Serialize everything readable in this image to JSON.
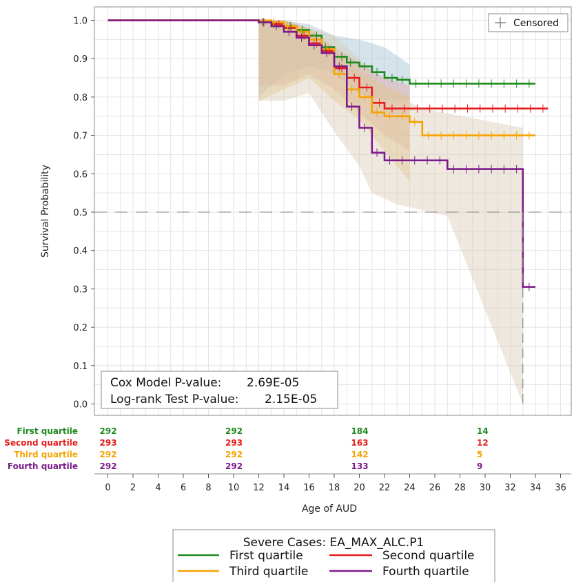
{
  "chart_data": {
    "type": "line",
    "subtype": "kaplan-meier",
    "xlabel": "Age of AUD",
    "ylabel": "Survival Probability",
    "xlim": [
      0,
      36
    ],
    "ylim": [
      0,
      1.0
    ],
    "x_ticks": [
      0,
      2,
      4,
      6,
      8,
      10,
      12,
      14,
      16,
      18,
      20,
      22,
      24,
      26,
      28,
      30,
      32,
      34,
      36
    ],
    "x_tick_labels": [
      "0",
      "2",
      "4",
      "6",
      "8",
      "10",
      "12",
      "14",
      "16",
      "18",
      "20",
      "22",
      "24",
      "26",
      "28",
      "30",
      "32",
      "34",
      "36"
    ],
    "y_ticks": [
      0,
      0.1,
      0.2,
      0.3,
      0.4,
      0.5,
      0.6,
      0.7,
      0.8,
      0.9,
      1.0
    ],
    "y_tick_labels": [
      "0.0",
      "0.1",
      "0.2",
      "0.3",
      "0.4",
      "0.5",
      "0.6",
      "0.7",
      "0.8",
      "0.9",
      "1.0"
    ],
    "grid": true,
    "reference_line_y": 0.5,
    "censor_legend": "Censored",
    "stats": {
      "cox_label": "Cox Model P-value:",
      "cox_value": "2.69E-05",
      "logrank_label": "Log-rank Test P-value:",
      "logrank_value": "2.15E-05"
    },
    "legend_title": "Severe Cases: EA_MAX_ALC.P1",
    "series": [
      {
        "name": "First quartile",
        "color": "#1e8a1e",
        "steps": [
          [
            0,
            1.0
          ],
          [
            12,
            0.995
          ],
          [
            13,
            0.99
          ],
          [
            14,
            0.985
          ],
          [
            15,
            0.975
          ],
          [
            16,
            0.96
          ],
          [
            17,
            0.93
          ],
          [
            18,
            0.905
          ],
          [
            19,
            0.89
          ],
          [
            20,
            0.88
          ],
          [
            21,
            0.865
          ],
          [
            22,
            0.85
          ],
          [
            23,
            0.845
          ],
          [
            24,
            0.835
          ],
          [
            34,
            0.835
          ]
        ],
        "end_x": 34,
        "censor_x": [
          12.3,
          13.2,
          14.5,
          15.5,
          16.6,
          17.3,
          18.6,
          19.3,
          20.4,
          21.4,
          22.6,
          23.4,
          24.5,
          25.5,
          26.5,
          27.5,
          28.5,
          29.5,
          30.5,
          31.5,
          32.5,
          33.5
        ],
        "ci_upper": [
          [
            12,
            1.0
          ],
          [
            14,
            1.0
          ],
          [
            16,
            0.99
          ],
          [
            18,
            0.96
          ],
          [
            20,
            0.95
          ],
          [
            22,
            0.93
          ],
          [
            24,
            0.885
          ]
        ],
        "ci_lower": [
          [
            12,
            0.8
          ],
          [
            14,
            0.86
          ],
          [
            16,
            0.88
          ],
          [
            18,
            0.86
          ],
          [
            20,
            0.81
          ],
          [
            22,
            0.79
          ],
          [
            24,
            0.79
          ]
        ],
        "ci_color": "#9cbfd0",
        "at_risk": [
          292,
          292,
          184,
          14
        ]
      },
      {
        "name": "Second quartile",
        "color": "#e61c1c",
        "steps": [
          [
            0,
            1.0
          ],
          [
            12,
            0.995
          ],
          [
            13,
            0.99
          ],
          [
            14,
            0.98
          ],
          [
            15,
            0.96
          ],
          [
            16,
            0.94
          ],
          [
            17,
            0.92
          ],
          [
            18,
            0.875
          ],
          [
            19,
            0.85
          ],
          [
            20,
            0.825
          ],
          [
            21,
            0.785
          ],
          [
            22,
            0.77
          ],
          [
            35,
            0.77
          ]
        ],
        "end_x": 35,
        "censor_x": [
          12.4,
          13.6,
          14.6,
          15.6,
          16.6,
          17.6,
          18.6,
          19.6,
          20.6,
          21.6,
          22.6,
          23.6,
          24.6,
          25.6,
          26.6,
          27.6,
          28.6,
          29.6,
          30.6,
          31.6,
          32.6,
          33.6,
          34.6
        ],
        "ci_upper": [
          [
            12,
            1.0
          ],
          [
            14,
            1.0
          ],
          [
            16,
            0.98
          ],
          [
            18,
            0.93
          ],
          [
            20,
            0.89
          ],
          [
            22,
            0.85
          ],
          [
            24,
            0.83
          ]
        ],
        "ci_lower": [
          [
            12,
            0.83
          ],
          [
            14,
            0.83
          ],
          [
            16,
            0.86
          ],
          [
            18,
            0.82
          ],
          [
            20,
            0.76
          ],
          [
            22,
            0.7
          ],
          [
            24,
            0.66
          ]
        ],
        "ci_color": "#e0a0a0",
        "at_risk": [
          293,
          293,
          163,
          12
        ]
      },
      {
        "name": "Third quartile",
        "color": "#f5a300",
        "steps": [
          [
            0,
            1.0
          ],
          [
            12,
            1.0
          ],
          [
            13,
            0.995
          ],
          [
            14,
            0.985
          ],
          [
            15,
            0.97
          ],
          [
            16,
            0.95
          ],
          [
            17,
            0.925
          ],
          [
            18,
            0.86
          ],
          [
            19,
            0.82
          ],
          [
            20,
            0.8
          ],
          [
            21,
            0.76
          ],
          [
            22,
            0.75
          ],
          [
            24,
            0.735
          ],
          [
            25,
            0.7
          ],
          [
            34,
            0.7
          ]
        ],
        "end_x": 34,
        "censor_x": [
          13.2,
          14.3,
          15.4,
          16.4,
          17.4,
          18.4,
          19.4,
          20.4,
          21.4,
          22.4,
          23.4,
          24.4,
          25.5,
          26.5,
          27.5,
          28.5,
          29.5,
          30.5,
          31.5,
          32.5,
          33.5
        ],
        "ci_upper": [
          [
            12,
            1.0
          ],
          [
            14,
            1.0
          ],
          [
            16,
            0.98
          ],
          [
            18,
            0.92
          ],
          [
            20,
            0.87
          ],
          [
            22,
            0.83
          ],
          [
            24,
            0.8
          ]
        ],
        "ci_lower": [
          [
            12,
            0.79
          ],
          [
            14,
            0.82
          ],
          [
            16,
            0.85
          ],
          [
            18,
            0.79
          ],
          [
            20,
            0.74
          ],
          [
            22,
            0.66
          ],
          [
            24,
            0.58
          ]
        ],
        "ci_color": "#e6c47a",
        "at_risk": [
          292,
          292,
          142,
          5
        ]
      },
      {
        "name": "Fourth quartile",
        "color": "#7a1a8a",
        "steps": [
          [
            0,
            1.0
          ],
          [
            12,
            0.995
          ],
          [
            13,
            0.985
          ],
          [
            14,
            0.97
          ],
          [
            15,
            0.955
          ],
          [
            16,
            0.935
          ],
          [
            17,
            0.915
          ],
          [
            18,
            0.88
          ],
          [
            19,
            0.775
          ],
          [
            20,
            0.72
          ],
          [
            21,
            0.655
          ],
          [
            22,
            0.635
          ],
          [
            27,
            0.612
          ],
          [
            33,
            0.305
          ],
          [
            34,
            0.305
          ]
        ],
        "end_x": 34,
        "censor_x": [
          12.4,
          13.4,
          14.4,
          15.4,
          16.4,
          17.4,
          18.4,
          19.4,
          20.4,
          21.4,
          22.4,
          23.4,
          24.4,
          25.4,
          26.4,
          27.5,
          28.5,
          29.5,
          30.5,
          31.5,
          32.5,
          33.5
        ],
        "ci_upper": [
          [
            12,
            1.0
          ],
          [
            13,
            1.0
          ],
          [
            15,
            0.99
          ],
          [
            18,
            0.96
          ],
          [
            20,
            0.9
          ],
          [
            22,
            0.82
          ],
          [
            25,
            0.77
          ],
          [
            33,
            0.72
          ],
          [
            33.01,
            0.72
          ]
        ],
        "ci_lower": [
          [
            12,
            0.79
          ],
          [
            14,
            0.79
          ],
          [
            16,
            0.81
          ],
          [
            18,
            0.71
          ],
          [
            20,
            0.62
          ],
          [
            21,
            0.55
          ],
          [
            23,
            0.52
          ],
          [
            27,
            0.49
          ],
          [
            33,
            0.0
          ],
          [
            33.01,
            0.0
          ]
        ],
        "ci_color": "#d9c7b0",
        "at_risk": [
          292,
          292,
          133,
          9
        ]
      }
    ],
    "at_risk_x": [
      0,
      10,
      20,
      30
    ],
    "legend_layout": [
      [
        "First quartile",
        "Second quartile"
      ],
      [
        "Third quartile",
        "Fourth quartile"
      ]
    ]
  }
}
